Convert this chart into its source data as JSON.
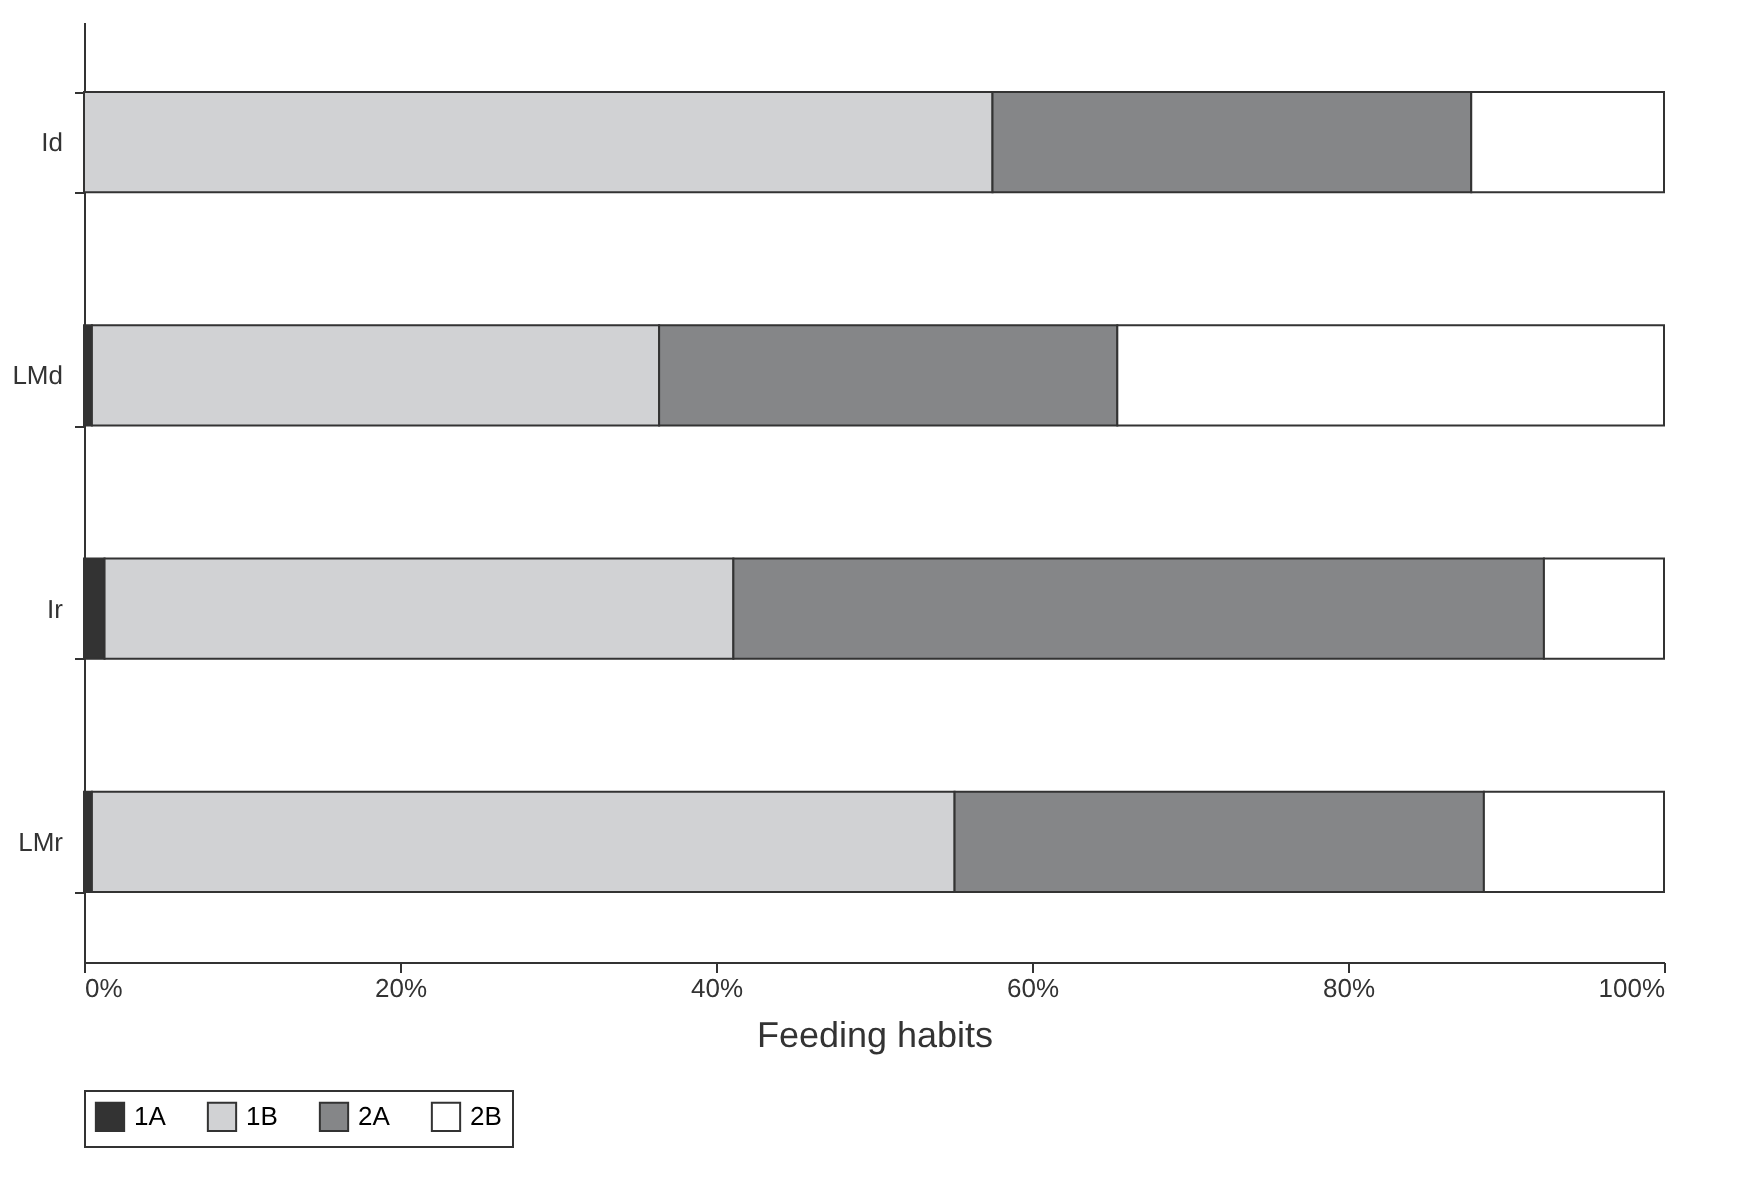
{
  "chart_data": {
    "type": "bar",
    "orientation": "horizontal",
    "stacked": true,
    "xlabel": "Feeding habits",
    "categories": [
      "Id",
      "LMd",
      "Ir",
      "LMr"
    ],
    "series": [
      {
        "name": "1A",
        "color": "#333333",
        "values": [
          0,
          0.5,
          1.3,
          0.5
        ]
      },
      {
        "name": "1B",
        "color": "#d1d2d4",
        "values": [
          57.5,
          35.9,
          39.8,
          54.6
        ]
      },
      {
        "name": "2A",
        "color": "#858688",
        "values": [
          30.3,
          29.0,
          51.3,
          33.5
        ]
      },
      {
        "name": "2B",
        "color": "#ffffff",
        "values": [
          12.2,
          34.6,
          7.6,
          11.4
        ]
      }
    ],
    "xlim": [
      0,
      100
    ],
    "xticks": [
      {
        "value": 0,
        "label": "0%"
      },
      {
        "value": 20,
        "label": "20%"
      },
      {
        "value": 40,
        "label": "40%"
      },
      {
        "value": 60,
        "label": "60%"
      },
      {
        "value": 80,
        "label": "80%"
      },
      {
        "value": 100,
        "label": "100%"
      }
    ],
    "grid": false,
    "legend": "bottom"
  }
}
